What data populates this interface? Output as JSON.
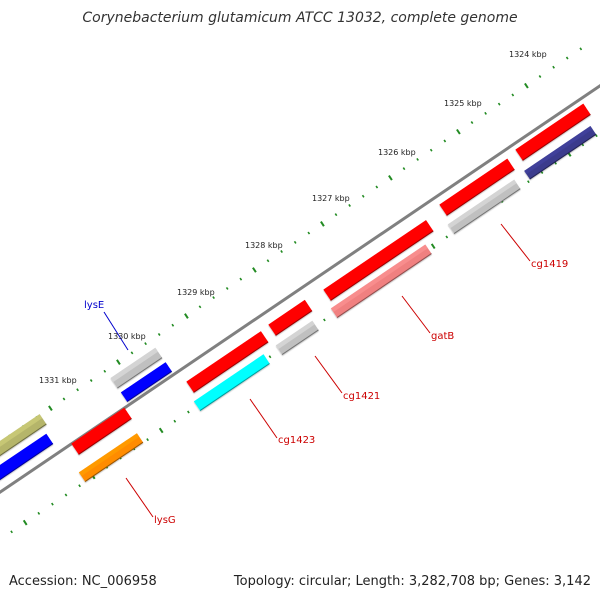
{
  "title": "Corynebacterium glutamicum ATCC 13032, complete genome",
  "scale": {
    "ticks": [
      "1324 kbp",
      "1325 kbp",
      "1326 kbp",
      "1327 kbp",
      "1328 kbp",
      "1329 kbp",
      "1330 kbp",
      "1331 kbp"
    ]
  },
  "colors": {
    "backbone": "#808080",
    "tick": "#228B22",
    "label_red": "#CC0000",
    "label_blue": "#0000CC"
  },
  "features": [
    {
      "color": "#FF0000"
    },
    {
      "color": "#3A3A8C"
    },
    {
      "color": "#FF0000"
    },
    {
      "color": "#C0C0C0"
    },
    {
      "color": "#FF0000"
    },
    {
      "color": "#F08080"
    },
    {
      "color": "#FF0000"
    },
    {
      "color": "#C0C0C0"
    },
    {
      "color": "#FF0000"
    },
    {
      "color": "#00FFFF"
    },
    {
      "color": "#C0C0C0"
    },
    {
      "color": "#0000FF"
    },
    {
      "color": "#FF0000"
    },
    {
      "color": "#FF8C00"
    },
    {
      "color": "#B5B56A"
    },
    {
      "color": "#0000FF"
    }
  ],
  "labels": [
    {
      "text": "cg1419",
      "color": "#CC0000"
    },
    {
      "text": "gatB",
      "color": "#CC0000"
    },
    {
      "text": "cg1421",
      "color": "#CC0000"
    },
    {
      "text": "cg1423",
      "color": "#CC0000"
    },
    {
      "text": "lysG",
      "color": "#CC0000"
    },
    {
      "text": "lysE",
      "color": "#0000CC"
    }
  ],
  "footer": {
    "accession": "Accession: NC_006958",
    "topology": "Topology: circular; Length: 3,282,708 bp; Genes: 3,142"
  }
}
